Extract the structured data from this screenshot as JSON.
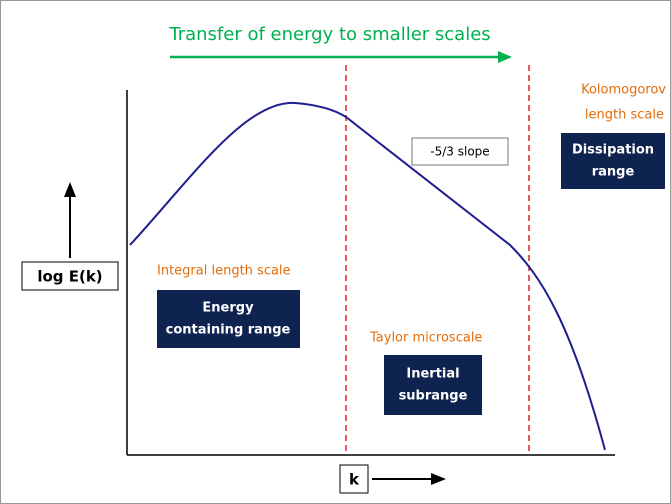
{
  "title": "Transfer of energy to smaller scales",
  "axes": {
    "y_label": "log E(k)",
    "x_label": "k"
  },
  "slope_label": "-5/3 slope",
  "regions": [
    {
      "scale": "Integral length scale",
      "range": [
        "Energy",
        "containing range"
      ]
    },
    {
      "scale": "Taylor microscale",
      "range": [
        "Inertial",
        "subrange"
      ]
    },
    {
      "scale": [
        "Kolomogorov",
        "length scale"
      ],
      "range": [
        "Dissipation",
        "range"
      ]
    }
  ]
}
